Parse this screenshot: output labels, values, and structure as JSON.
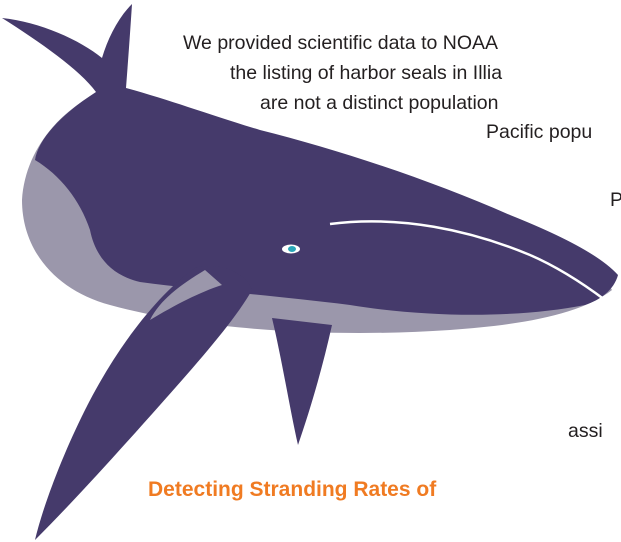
{
  "paragraph": {
    "lines": [
      "We provided scientific data to NOAA",
      "the listing of harbor seals in Illia",
      "are not a distinct population",
      "Pacific popu",
      "P",
      "assi"
    ]
  },
  "heading": "Detecting Stranding Rates of"
}
